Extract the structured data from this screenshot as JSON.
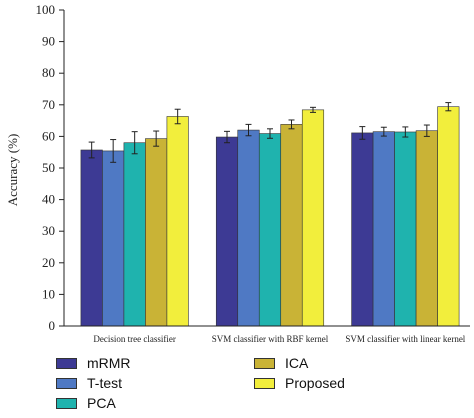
{
  "chart_data": {
    "type": "bar",
    "ylabel": "Accuracy (%)",
    "xlabel": "",
    "ylim": [
      0,
      100
    ],
    "yticks": [
      0,
      10,
      20,
      30,
      40,
      50,
      60,
      70,
      80,
      90,
      100
    ],
    "categories": [
      "Decision tree classifier",
      "SVM classifier with RBF kernel",
      "SVM classifier with linear kernel"
    ],
    "series": [
      {
        "name": "mRMR",
        "color": "#3d3a94",
        "values": [
          55.7,
          59.8,
          61.1
        ],
        "errors": [
          2.5,
          1.8,
          2.0
        ]
      },
      {
        "name": "T-test",
        "color": "#4f79c4",
        "values": [
          55.4,
          62.0,
          61.5
        ],
        "errors": [
          3.6,
          1.8,
          1.4
        ]
      },
      {
        "name": "PCA",
        "color": "#1fb3ae",
        "values": [
          58.0,
          60.9,
          61.4
        ],
        "errors": [
          3.5,
          1.5,
          1.6
        ]
      },
      {
        "name": "ICA",
        "color": "#c9b336",
        "values": [
          59.3,
          63.8,
          61.8
        ],
        "errors": [
          2.4,
          1.4,
          1.8
        ]
      },
      {
        "name": "Proposed",
        "color": "#f2ee3c",
        "values": [
          66.3,
          68.4,
          69.4
        ],
        "errors": [
          2.3,
          0.8,
          1.3
        ]
      }
    ],
    "legend_position": "bottom"
  }
}
